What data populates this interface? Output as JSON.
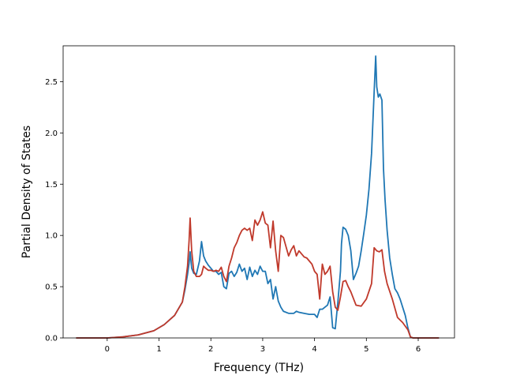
{
  "chart_data": {
    "type": "line",
    "xlabel": "Frequency (THz)",
    "ylabel": "Partial Density of States",
    "xlim": [
      -0.85,
      6.7
    ],
    "ylim": [
      0,
      2.85
    ],
    "xticks": [
      0,
      1,
      2,
      3,
      4,
      5,
      6
    ],
    "yticks": [
      0.0,
      0.5,
      1.0,
      1.5,
      2.0,
      2.5
    ],
    "xtick_labels": [
      "0",
      "1",
      "2",
      "3",
      "4",
      "5",
      "6"
    ],
    "ytick_labels": [
      "0.0",
      "0.5",
      "1.0",
      "1.5",
      "2.0",
      "2.5"
    ],
    "grid": false,
    "series": [
      {
        "color": "#1f77b4",
        "x": [
          -0.6,
          0,
          0.3,
          0.6,
          0.9,
          1.1,
          1.3,
          1.45,
          1.5,
          1.55,
          1.58,
          1.6,
          1.63,
          1.67,
          1.72,
          1.78,
          1.82,
          1.86,
          1.9,
          1.95,
          2.0,
          2.05,
          2.1,
          2.15,
          2.2,
          2.25,
          2.3,
          2.35,
          2.4,
          2.45,
          2.5,
          2.55,
          2.6,
          2.65,
          2.7,
          2.75,
          2.8,
          2.85,
          2.9,
          2.95,
          3.0,
          3.05,
          3.1,
          3.15,
          3.2,
          3.25,
          3.3,
          3.35,
          3.4,
          3.5,
          3.6,
          3.65,
          3.7,
          3.8,
          3.9,
          4.0,
          4.05,
          4.1,
          4.15,
          4.2,
          4.25,
          4.3,
          4.35,
          4.4,
          4.45,
          4.5,
          4.52,
          4.55,
          4.6,
          4.65,
          4.7,
          4.75,
          4.8,
          4.85,
          4.9,
          4.95,
          5.0,
          5.05,
          5.1,
          5.15,
          5.18,
          5.2,
          5.23,
          5.26,
          5.3,
          5.33,
          5.36,
          5.4,
          5.45,
          5.5,
          5.55,
          5.6,
          5.65,
          5.7,
          5.75,
          5.8,
          5.85,
          5.9,
          6.0,
          6.2,
          6.4
        ],
        "values": [
          0,
          0,
          0.01,
          0.03,
          0.07,
          0.13,
          0.22,
          0.35,
          0.47,
          0.62,
          0.73,
          0.84,
          0.68,
          0.63,
          0.62,
          0.75,
          0.94,
          0.8,
          0.75,
          0.71,
          0.68,
          0.65,
          0.65,
          0.62,
          0.64,
          0.5,
          0.48,
          0.63,
          0.65,
          0.6,
          0.64,
          0.72,
          0.65,
          0.68,
          0.57,
          0.69,
          0.6,
          0.66,
          0.62,
          0.7,
          0.65,
          0.65,
          0.53,
          0.57,
          0.38,
          0.5,
          0.36,
          0.3,
          0.26,
          0.24,
          0.24,
          0.26,
          0.25,
          0.24,
          0.23,
          0.23,
          0.2,
          0.28,
          0.28,
          0.3,
          0.32,
          0.4,
          0.1,
          0.09,
          0.35,
          0.65,
          0.92,
          1.08,
          1.06,
          1.0,
          0.85,
          0.57,
          0.63,
          0.7,
          0.85,
          1.02,
          1.2,
          1.45,
          1.8,
          2.4,
          2.75,
          2.45,
          2.35,
          2.38,
          2.32,
          1.65,
          1.35,
          1.05,
          0.78,
          0.62,
          0.48,
          0.44,
          0.38,
          0.3,
          0.22,
          0.1,
          0.01,
          0,
          0,
          0,
          0
        ]
      },
      {
        "color": "#c0392b",
        "x": [
          -0.6,
          0,
          0.3,
          0.6,
          0.9,
          1.1,
          1.3,
          1.45,
          1.5,
          1.55,
          1.58,
          1.6,
          1.63,
          1.67,
          1.72,
          1.78,
          1.82,
          1.86,
          1.9,
          1.95,
          2.0,
          2.05,
          2.1,
          2.15,
          2.2,
          2.25,
          2.3,
          2.35,
          2.4,
          2.45,
          2.5,
          2.55,
          2.6,
          2.65,
          2.7,
          2.75,
          2.8,
          2.85,
          2.9,
          2.95,
          3.0,
          3.05,
          3.1,
          3.15,
          3.2,
          3.25,
          3.3,
          3.35,
          3.4,
          3.5,
          3.55,
          3.6,
          3.65,
          3.7,
          3.75,
          3.8,
          3.85,
          3.9,
          3.95,
          4.0,
          4.05,
          4.1,
          4.15,
          4.2,
          4.25,
          4.3,
          4.35,
          4.4,
          4.45,
          4.5,
          4.55,
          4.6,
          4.65,
          4.7,
          4.8,
          4.9,
          5.0,
          5.1,
          5.15,
          5.2,
          5.25,
          5.3,
          5.35,
          5.4,
          5.5,
          5.6,
          5.7,
          5.8,
          5.85,
          5.9,
          6.0,
          6.2,
          6.4
        ],
        "values": [
          0,
          0,
          0.01,
          0.03,
          0.07,
          0.13,
          0.22,
          0.35,
          0.5,
          0.7,
          0.95,
          1.17,
          0.85,
          0.65,
          0.6,
          0.6,
          0.62,
          0.7,
          0.68,
          0.66,
          0.66,
          0.65,
          0.66,
          0.65,
          0.69,
          0.6,
          0.55,
          0.7,
          0.78,
          0.88,
          0.93,
          1.0,
          1.05,
          1.07,
          1.05,
          1.07,
          0.95,
          1.15,
          1.1,
          1.15,
          1.23,
          1.12,
          1.1,
          0.88,
          1.14,
          0.85,
          0.65,
          1.0,
          0.98,
          0.8,
          0.86,
          0.9,
          0.8,
          0.85,
          0.82,
          0.79,
          0.78,
          0.75,
          0.72,
          0.65,
          0.62,
          0.38,
          0.72,
          0.62,
          0.65,
          0.7,
          0.45,
          0.3,
          0.27,
          0.4,
          0.55,
          0.56,
          0.5,
          0.45,
          0.32,
          0.31,
          0.38,
          0.53,
          0.88,
          0.85,
          0.84,
          0.86,
          0.65,
          0.53,
          0.38,
          0.2,
          0.15,
          0.08,
          0.01,
          0,
          0,
          0,
          0
        ]
      }
    ]
  }
}
